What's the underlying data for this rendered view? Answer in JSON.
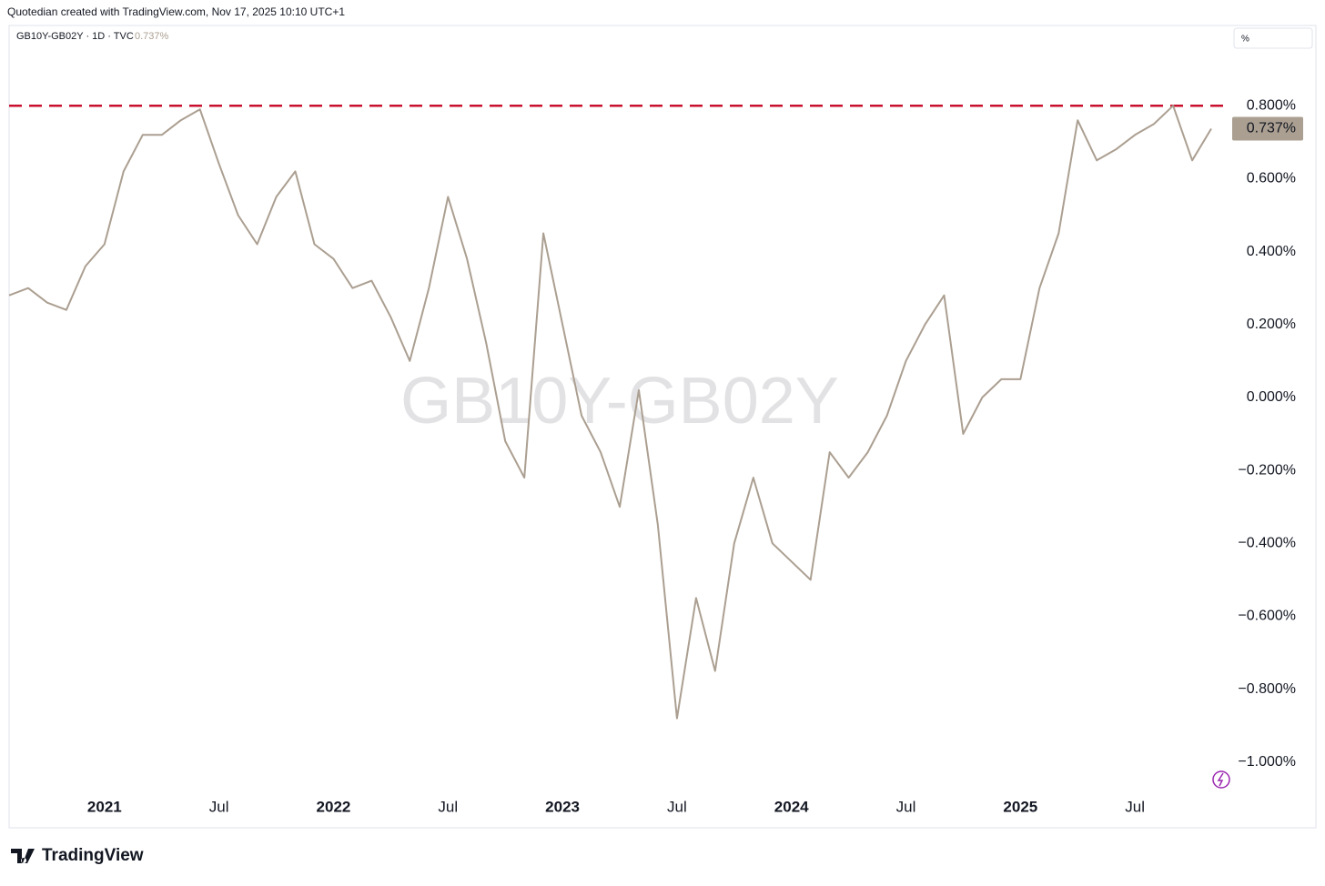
{
  "header": {
    "credit": "Quotedian created with TradingView.com, Nov 17, 2025 10:10 UTC+1",
    "symbol": "GB10Y-GB02Y · 1D · TVC",
    "scale_button": "%",
    "brand": "TradingView"
  },
  "chart_data": {
    "type": "line",
    "watermark": "GB10Y-GB02Y",
    "color": "#ab9f91",
    "x": [
      "2020-08",
      "2020-09",
      "2020-10",
      "2020-11",
      "2020-12",
      "2021-01",
      "2021-02",
      "2021-03",
      "2021-04",
      "2021-05",
      "2021-06",
      "2021-07",
      "2021-08",
      "2021-09",
      "2021-10",
      "2021-11",
      "2021-12",
      "2022-01",
      "2022-02",
      "2022-03",
      "2022-04",
      "2022-05",
      "2022-06",
      "2022-07",
      "2022-08",
      "2022-09",
      "2022-10",
      "2022-11",
      "2022-12",
      "2023-01",
      "2023-02",
      "2023-03",
      "2023-04",
      "2023-05",
      "2023-06",
      "2023-07",
      "2023-08",
      "2023-09",
      "2023-10",
      "2023-11",
      "2023-12",
      "2024-01",
      "2024-02",
      "2024-03",
      "2024-04",
      "2024-05",
      "2024-06",
      "2024-07",
      "2024-08",
      "2024-09",
      "2024-10",
      "2024-11",
      "2024-12",
      "2025-01",
      "2025-02",
      "2025-03",
      "2025-04",
      "2025-05",
      "2025-06",
      "2025-07",
      "2025-08",
      "2025-09",
      "2025-10",
      "2025-11"
    ],
    "values": [
      0.28,
      0.3,
      0.26,
      0.24,
      0.36,
      0.42,
      0.62,
      0.72,
      0.72,
      0.76,
      0.79,
      0.64,
      0.5,
      0.42,
      0.55,
      0.62,
      0.42,
      0.38,
      0.3,
      0.32,
      0.22,
      0.1,
      0.3,
      0.55,
      0.38,
      0.15,
      -0.12,
      -0.22,
      0.45,
      0.2,
      -0.05,
      -0.15,
      -0.3,
      0.02,
      -0.35,
      -0.88,
      -0.55,
      -0.75,
      -0.4,
      -0.22,
      -0.4,
      -0.45,
      -0.5,
      -0.15,
      -0.22,
      -0.15,
      -0.05,
      0.1,
      0.2,
      0.28,
      -0.1,
      0.0,
      0.05,
      0.05,
      0.3,
      0.45,
      0.76,
      0.65,
      0.68,
      0.72,
      0.75,
      0.8,
      0.65,
      0.737
    ],
    "last_value_label": "0.737%",
    "reference_line": {
      "value": 0.8,
      "color": "#c8102e"
    },
    "xlim": [
      "2020-08",
      "2025-12"
    ],
    "xticks": [
      {
        "value": "2021-01",
        "label": "2021"
      },
      {
        "value": "2021-07",
        "label": "Jul"
      },
      {
        "value": "2022-01",
        "label": "2022"
      },
      {
        "value": "2022-07",
        "label": "Jul"
      },
      {
        "value": "2023-01",
        "label": "2023"
      },
      {
        "value": "2023-07",
        "label": "Jul"
      },
      {
        "value": "2024-01",
        "label": "2024"
      },
      {
        "value": "2024-07",
        "label": "Jul"
      },
      {
        "value": "2025-01",
        "label": "2025"
      },
      {
        "value": "2025-07",
        "label": "Jul"
      }
    ],
    "ylim": [
      -1.18,
      1.02
    ],
    "yticks": [
      {
        "value": 0.8,
        "label": "0.800%"
      },
      {
        "value": 0.6,
        "label": "0.600%"
      },
      {
        "value": 0.4,
        "label": "0.400%"
      },
      {
        "value": 0.2,
        "label": "0.200%"
      },
      {
        "value": 0,
        "label": "0.000%"
      },
      {
        "value": -0.2,
        "label": "−0.200%"
      },
      {
        "value": -0.4,
        "label": "−0.400%"
      },
      {
        "value": -0.6,
        "label": "−0.600%"
      },
      {
        "value": -0.8,
        "label": "−0.800%"
      },
      {
        "value": -1,
        "label": "−1.000%"
      }
    ],
    "grid": false
  }
}
